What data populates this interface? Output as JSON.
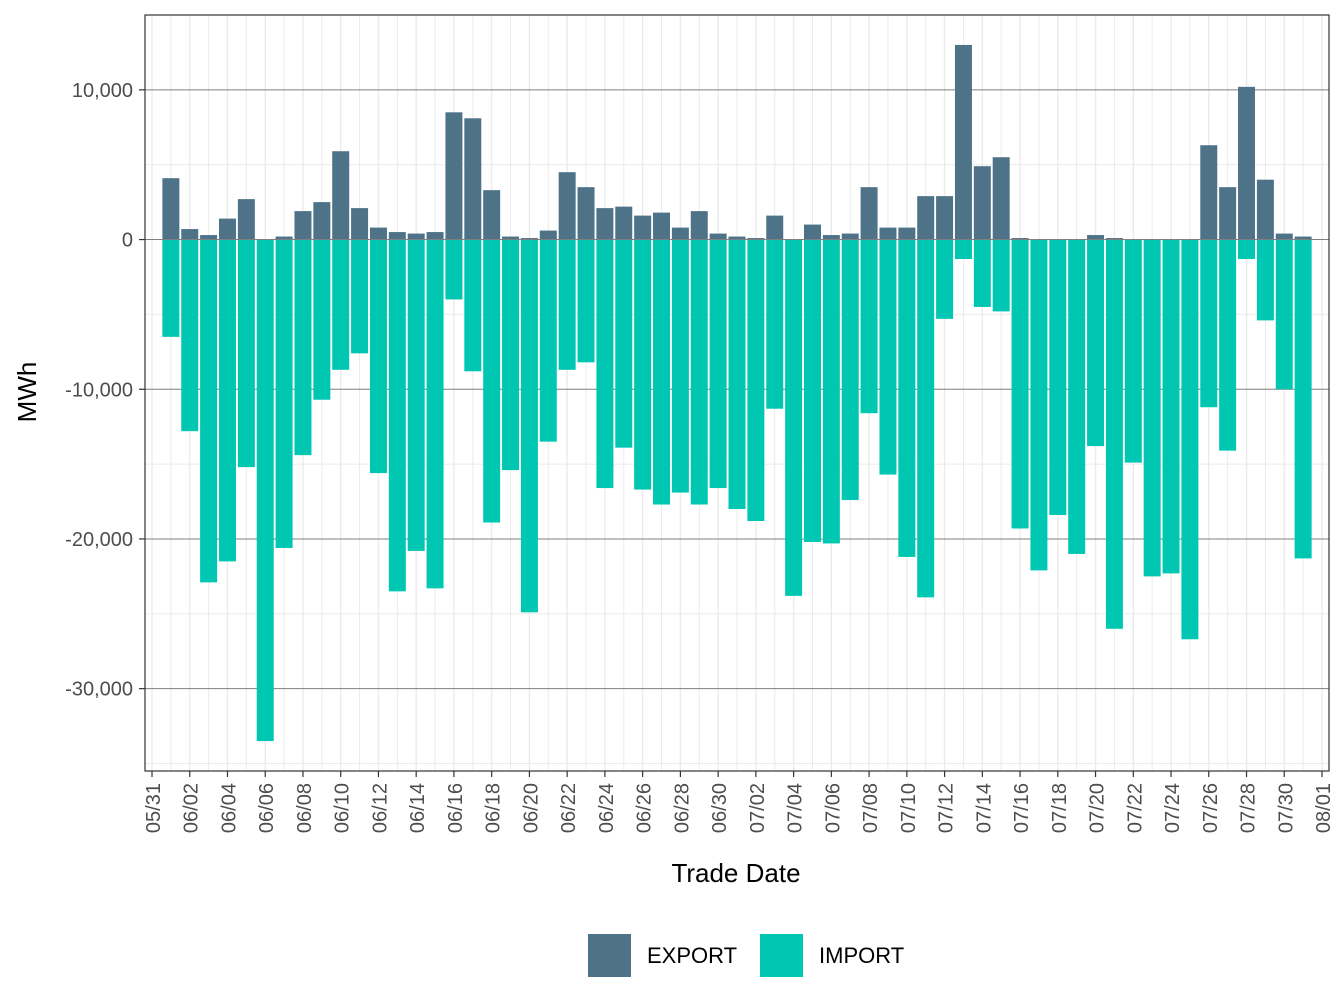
{
  "colors": {
    "export": "#4E7287",
    "import": "#00C7B1",
    "major_grid": "#7f7f7f",
    "minor_grid": "#ebebeb",
    "panel_border": "#333333"
  },
  "chart_data": {
    "type": "bar",
    "stacked": "diverging",
    "xlabel": "Trade Date",
    "ylabel": "MWh",
    "ylim": [
      -35500,
      15000
    ],
    "yticks": [
      -30000,
      -20000,
      -10000,
      0,
      10000
    ],
    "ytick_labels": [
      "-30,000",
      "-20,000",
      "-10,000",
      "0",
      "10,000"
    ],
    "x_range": [
      "05/31",
      "08/01"
    ],
    "xtick_labels": [
      "05/31",
      "06/02",
      "06/04",
      "06/06",
      "06/08",
      "06/10",
      "06/12",
      "06/14",
      "06/16",
      "06/18",
      "06/20",
      "06/22",
      "06/24",
      "06/26",
      "06/28",
      "06/30",
      "07/02",
      "07/04",
      "07/06",
      "07/08",
      "07/10",
      "07/12",
      "07/14",
      "07/16",
      "07/18",
      "07/20",
      "07/22",
      "07/24",
      "07/26",
      "07/28",
      "07/30",
      "08/01"
    ],
    "grid": true,
    "legend_position": "bottom",
    "categories": [
      "06/01",
      "06/02",
      "06/03",
      "06/04",
      "06/05",
      "06/06",
      "06/07",
      "06/08",
      "06/09",
      "06/10",
      "06/11",
      "06/12",
      "06/13",
      "06/14",
      "06/15",
      "06/16",
      "06/17",
      "06/18",
      "06/19",
      "06/20",
      "06/21",
      "06/22",
      "06/23",
      "06/24",
      "06/25",
      "06/26",
      "06/27",
      "06/28",
      "06/29",
      "06/30",
      "07/01",
      "07/02",
      "07/03",
      "07/04",
      "07/05",
      "07/06",
      "07/07",
      "07/08",
      "07/09",
      "07/10",
      "07/11",
      "07/12",
      "07/13",
      "07/14",
      "07/15",
      "07/16",
      "07/17",
      "07/18",
      "07/19",
      "07/20",
      "07/21",
      "07/22",
      "07/23",
      "07/24",
      "07/25",
      "07/26",
      "07/27",
      "07/28",
      "07/29",
      "07/30",
      "07/31"
    ],
    "series": [
      {
        "name": "EXPORT",
        "values": [
          4100,
          700,
          300,
          1400,
          2700,
          0,
          200,
          1900,
          2500,
          5900,
          2100,
          800,
          500,
          400,
          500,
          8500,
          8100,
          3300,
          200,
          100,
          600,
          4500,
          3500,
          2100,
          2200,
          1600,
          1800,
          800,
          1900,
          400,
          200,
          100,
          1600,
          0,
          1000,
          300,
          400,
          3500,
          800,
          800,
          2900,
          2900,
          13000,
          4900,
          5500,
          100,
          0,
          0,
          0,
          300,
          100,
          0,
          0,
          0,
          0,
          6300,
          3500,
          10200,
          4000,
          400,
          200
        ]
      },
      {
        "name": "IMPORT",
        "values": [
          -6500,
          -12800,
          -22900,
          -21500,
          -15200,
          -33500,
          -20600,
          -14400,
          -10700,
          -8700,
          -7600,
          -15600,
          -23500,
          -20800,
          -23300,
          -4000,
          -8800,
          -18900,
          -15400,
          -24900,
          -13500,
          -8700,
          -8200,
          -16600,
          -13900,
          -16700,
          -17700,
          -16900,
          -17700,
          -16600,
          -18000,
          -18800,
          -11300,
          -23800,
          -20200,
          -20300,
          -17400,
          -11600,
          -15700,
          -21200,
          -23900,
          -5300,
          -1300,
          -4500,
          -4800,
          -19300,
          -22100,
          -18400,
          -21000,
          -13800,
          -26000,
          -14900,
          -22500,
          -22300,
          -26700,
          -11200,
          -14100,
          -1300,
          -5400,
          -10000,
          -21300
        ]
      }
    ]
  }
}
